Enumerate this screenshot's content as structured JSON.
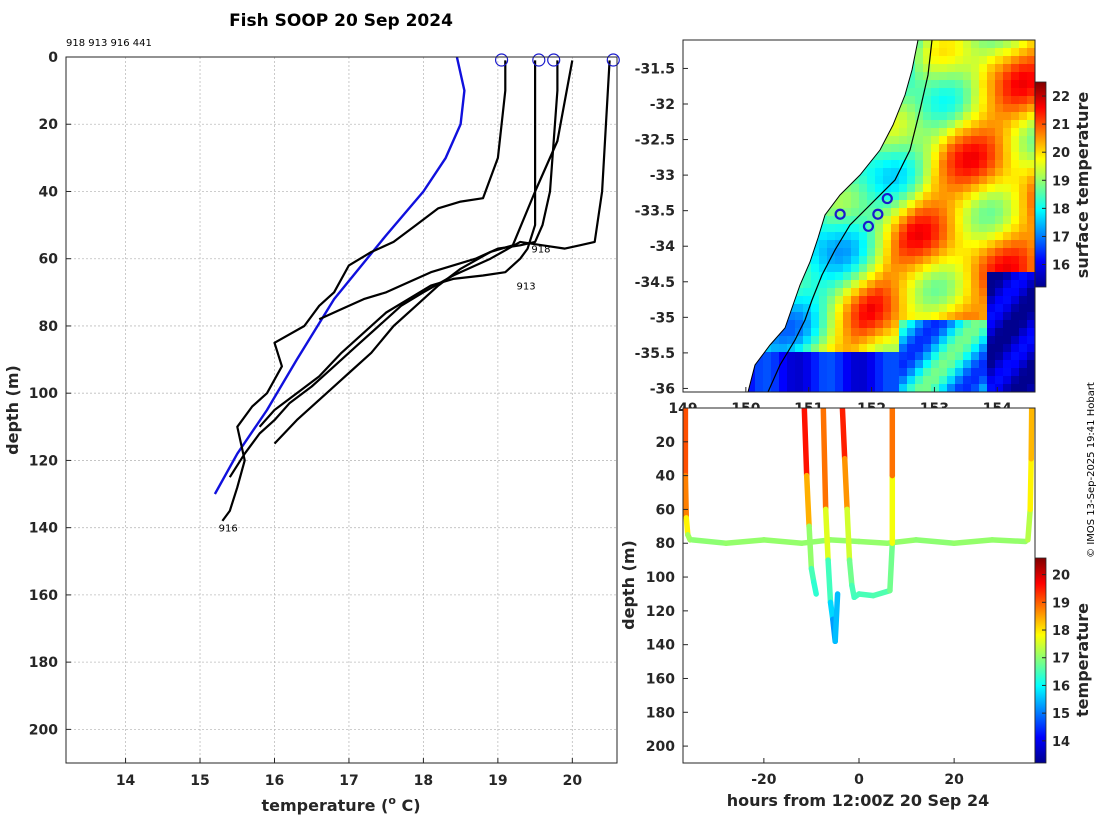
{
  "title": "Fish SOOP 20 Sep 2024",
  "credit": "© IMOS 13-Sep-2025 19:41 Hobart",
  "colors": {
    "climatology": "#1010dd",
    "profile": "#000000",
    "marker": "#1a1acc",
    "frame": "#262626"
  },
  "chart_data": [
    {
      "type": "line",
      "name": "temperature-profiles",
      "title": "Fish SOOP 20 Sep 2024",
      "xlabel": "temperature (o C)",
      "xlabel_main": "temperature (",
      "xlabel_sup": "o",
      "xlabel_end": " C)",
      "ylabel": "depth (m)",
      "xlim": [
        13.2,
        20.6
      ],
      "ylim": [
        210,
        0
      ],
      "xticks": [
        14,
        15,
        16,
        17,
        18,
        19,
        20
      ],
      "yticks": [
        0,
        20,
        40,
        60,
        80,
        100,
        120,
        140,
        160,
        180,
        200
      ],
      "grid": true,
      "id_header": "918 913 916 441",
      "series": [
        {
          "name": "climatology",
          "x": [
            15.2,
            15.5,
            15.9,
            16.3,
            16.8,
            17.5,
            18.0,
            18.3,
            18.5,
            18.55,
            18.45
          ],
          "y": [
            130,
            118,
            105,
            90,
            72,
            53,
            40,
            30,
            20,
            10,
            0
          ]
        },
        {
          "name": "916",
          "x": [
            15.3,
            15.4,
            15.5,
            15.6,
            15.5,
            15.7,
            15.9,
            16.1,
            16.0,
            16.4,
            16.6,
            16.8,
            17.0,
            17.3,
            17.6,
            17.9,
            18.2,
            18.5,
            18.8,
            19.0,
            19.1,
            19.1,
            19.1
          ],
          "y": [
            138,
            135,
            128,
            120,
            110,
            104,
            100,
            92,
            85,
            80,
            74,
            70,
            62,
            58,
            55,
            50,
            45,
            43,
            42,
            30,
            10,
            3,
            1
          ]
        },
        {
          "name": "918",
          "x": [
            15.4,
            15.6,
            15.8,
            16.0,
            16.2,
            16.5,
            16.8,
            17.1,
            17.4,
            17.7,
            18.0,
            18.4,
            18.9,
            19.3,
            19.6,
            19.9,
            20.1,
            20.3,
            20.4,
            20.5
          ],
          "y": [
            125,
            118,
            112,
            108,
            103,
            98,
            92,
            86,
            80,
            74,
            70,
            65,
            60,
            55,
            56,
            57,
            56,
            55,
            40,
            1
          ]
        },
        {
          "name": "913",
          "x": [
            15.8,
            16.0,
            16.3,
            16.6,
            16.9,
            17.2,
            17.5,
            17.8,
            18.1,
            18.4,
            18.8,
            19.1,
            19.3,
            19.4,
            19.5,
            19.5,
            19.5
          ],
          "y": [
            110,
            105,
            100,
            95,
            88,
            82,
            76,
            72,
            68,
            66,
            65,
            64,
            60,
            57,
            50,
            20,
            1
          ]
        },
        {
          "name": "441",
          "x": [
            16.6,
            16.9,
            17.2,
            17.5,
            17.8,
            18.1,
            18.4,
            18.7,
            19.0,
            19.3,
            19.5,
            19.6,
            19.7,
            19.8,
            19.8
          ],
          "y": [
            78,
            75,
            72,
            70,
            67,
            64,
            62,
            60,
            57,
            56,
            55,
            50,
            40,
            10,
            1
          ]
        },
        {
          "name": "extra-1",
          "x": [
            16.0,
            16.3,
            16.7,
            17.0,
            17.3,
            17.6,
            17.9,
            18.2,
            18.5,
            18.9,
            19.2,
            19.5,
            19.8,
            20.0
          ],
          "y": [
            115,
            108,
            100,
            94,
            88,
            80,
            74,
            68,
            63,
            58,
            56,
            40,
            25,
            1
          ]
        }
      ],
      "surface_markers_x": [
        19.05,
        19.55,
        19.75,
        20.55
      ],
      "profile_labels": [
        {
          "text": "918",
          "x": 19.45,
          "y": 57
        },
        {
          "text": "913",
          "x": 19.25,
          "y": 68
        },
        {
          "text": "916",
          "x": 15.25,
          "y": 140
        }
      ]
    },
    {
      "type": "heatmap",
      "name": "surface-temperature-map",
      "colorbar_label": "surface temperature",
      "xlim": [
        149.0,
        154.6
      ],
      "ylim": [
        -36.05,
        -31.1
      ],
      "xtick_labels": [
        "149",
        "150",
        "151",
        "152",
        "153",
        "154"
      ],
      "xticks": [
        149,
        150,
        151,
        152,
        153,
        154
      ],
      "yticks": [
        -31.5,
        -32,
        -32.5,
        -33,
        -33.5,
        -34,
        -34.5,
        -35,
        -35.5,
        -36
      ],
      "ytick_labels": [
        "-31.5",
        "-32",
        "-32.5",
        "-33",
        "-33.5",
        "-34",
        "-34.5",
        "-35",
        "-35.5",
        "-36"
      ],
      "clim": [
        15.2,
        22.5
      ],
      "colorbar_ticks": [
        16,
        17,
        18,
        19,
        20,
        21,
        22
      ],
      "station_markers": [
        {
          "lon": 151.5,
          "lat": -33.55
        },
        {
          "lon": 152.1,
          "lat": -33.55
        },
        {
          "lon": 152.25,
          "lat": -33.33
        },
        {
          "lon": 151.95,
          "lat": -33.72
        }
      ]
    },
    {
      "type": "scatter",
      "name": "depth-time-section",
      "xlabel": "hours from 12:00Z 20 Sep 24",
      "ylabel": "depth (m)",
      "colorbar_label": "temperature",
      "xlim": [
        -37,
        37
      ],
      "ylim": [
        210,
        0
      ],
      "xticks": [
        -20,
        0,
        20
      ],
      "yticks": [
        20,
        40,
        60,
        80,
        100,
        120,
        140,
        160,
        180,
        200
      ],
      "clim": [
        13.2,
        20.6
      ],
      "colorbar_ticks": [
        14,
        15,
        16,
        17,
        18,
        19,
        20
      ],
      "series": [
        {
          "name": "left-profile",
          "x": [
            -36.5,
            -36.5,
            -36.3,
            -36.0,
            -35.5
          ],
          "y": [
            0,
            40,
            65,
            75,
            78
          ],
          "temp": [
            19.2,
            19.0,
            18.5,
            17.3,
            17.0
          ]
        },
        {
          "name": "baseline-80m",
          "x": [
            -35,
            -28,
            -20,
            -12,
            -6,
            0,
            6,
            12,
            20,
            28,
            35
          ],
          "y": [
            78,
            80,
            78,
            80,
            78,
            79,
            80,
            78,
            80,
            78,
            79
          ],
          "temp": [
            17.0,
            17.0,
            17.1,
            17.0,
            17.1,
            17.0,
            17.1,
            17.0,
            17.0,
            17.1,
            17.0
          ]
        },
        {
          "name": "right-profile",
          "x": [
            35.5,
            36.0,
            36.2,
            36.3
          ],
          "y": [
            78,
            60,
            30,
            0
          ],
          "temp": [
            17.0,
            17.6,
            18.2,
            18.5
          ]
        },
        {
          "name": "dive-1",
          "x": [
            -11.5,
            -11.0,
            -10.5,
            -10.0,
            -9.5,
            -9.0
          ],
          "y": [
            0,
            40,
            70,
            95,
            103,
            110
          ],
          "temp": [
            19.8,
            19.3,
            17.5,
            16.6,
            16.4,
            16.2
          ]
        },
        {
          "name": "dive-2",
          "x": [
            -7.5,
            -7.0,
            -6.5,
            -6.0,
            -5.5,
            -5.0,
            -4.5
          ],
          "y": [
            0,
            60,
            90,
            115,
            125,
            138,
            110
          ],
          "temp": [
            19.5,
            18.2,
            17.0,
            15.9,
            15.5,
            15.0,
            16.0
          ]
        },
        {
          "name": "dive-3",
          "x": [
            -3.5,
            -3.0,
            -2.5,
            -2.0,
            -1.5,
            -1.0,
            0.0,
            3.0,
            6.5
          ],
          "y": [
            0,
            30,
            60,
            90,
            105,
            112,
            110,
            111,
            108
          ],
          "temp": [
            19.7,
            19.2,
            18.0,
            17.0,
            16.6,
            16.4,
            16.5,
            16.5,
            16.6
          ]
        },
        {
          "name": "right-dive",
          "x": [
            6.5,
            7.0,
            7.0,
            7.0
          ],
          "y": [
            108,
            80,
            40,
            0
          ],
          "temp": [
            16.6,
            17.0,
            18.5,
            19.2
          ]
        }
      ]
    }
  ]
}
